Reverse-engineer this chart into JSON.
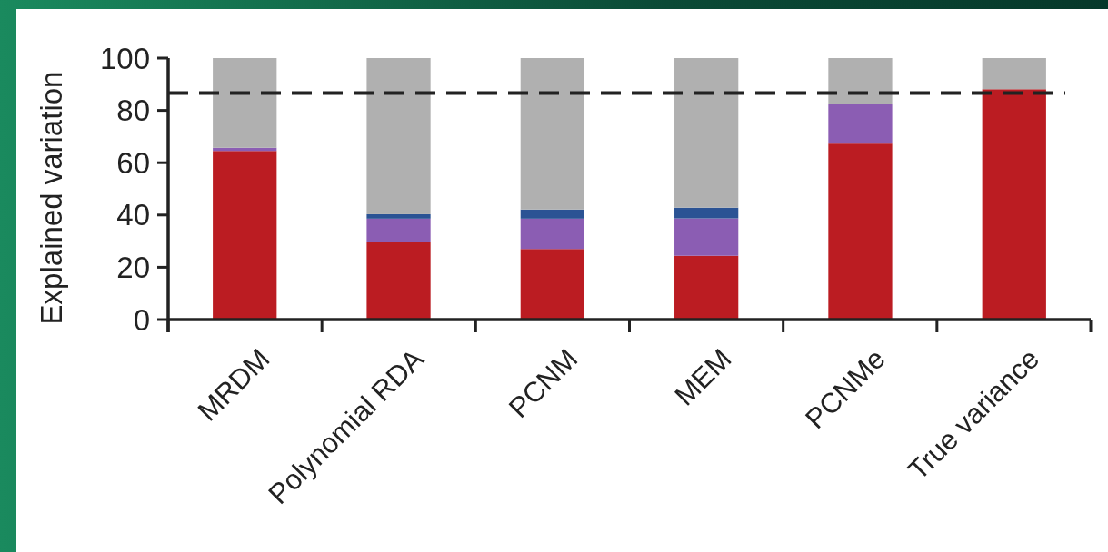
{
  "chart_data": {
    "type": "bar",
    "stacked": true,
    "ylabel": "Explained variation",
    "categories": [
      "MRDM",
      "Polynomial RDA",
      "PCNM",
      "MEM",
      "PCNMe",
      "True variance"
    ],
    "series": [
      {
        "color": "#bb1c22",
        "values": [
          64.5,
          29.8,
          27.0,
          24.4,
          67.3,
          88.1
        ]
      },
      {
        "color": "#8b5db3",
        "values": [
          1.2,
          8.8,
          11.6,
          14.3,
          15.1,
          0
        ]
      },
      {
        "color": "#2b5394",
        "values": [
          0,
          1.7,
          3.5,
          4.1,
          0,
          0
        ]
      },
      {
        "color": "#b0b0b0",
        "values": [
          34.3,
          59.7,
          57.9,
          57.2,
          17.6,
          11.9
        ]
      }
    ],
    "ylim": [
      0,
      100
    ],
    "yticks": [
      0,
      20,
      40,
      60,
      80,
      100
    ],
    "ref_lines": [
      {
        "axis": "y",
        "value": 86.6,
        "line_style": "dashed",
        "color": "#222222"
      }
    ]
  }
}
